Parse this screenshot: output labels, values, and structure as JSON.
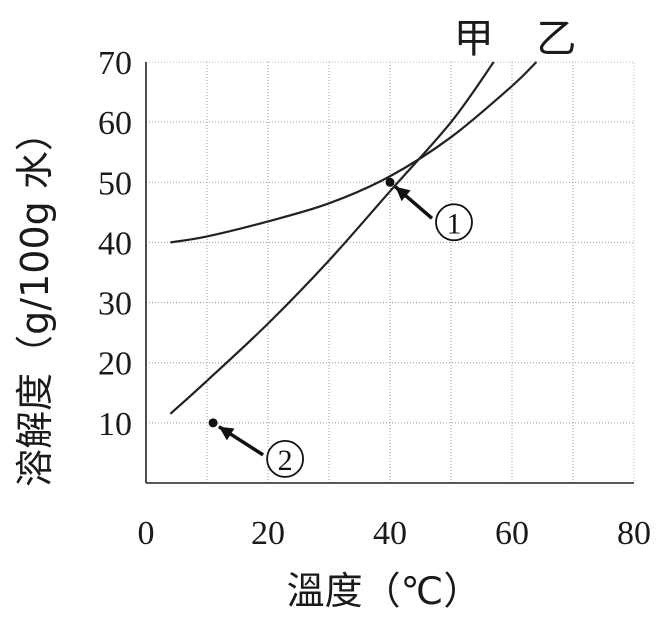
{
  "chart_data": {
    "type": "line",
    "title": "",
    "xlabel": "溫度（℃）",
    "ylabel": "溶解度（g/100g 水）",
    "xlim": [
      0,
      80
    ],
    "ylim": [
      0,
      70
    ],
    "x_ticks": [
      "0",
      "20",
      "40",
      "60",
      "80"
    ],
    "y_ticks": [
      "10",
      "20",
      "30",
      "40",
      "50",
      "60",
      "70"
    ],
    "grid": true,
    "series": [
      {
        "name": "甲",
        "x": [
          4,
          10,
          20,
          30,
          40,
          50,
          57
        ],
        "y": [
          11.5,
          17,
          26.5,
          37,
          48.5,
          60,
          70
        ]
      },
      {
        "name": "乙",
        "x": [
          4,
          10,
          20,
          30,
          40,
          50,
          60,
          64
        ],
        "y": [
          40,
          41,
          43.5,
          46.5,
          51,
          57.5,
          66,
          70
        ]
      }
    ],
    "points": [
      {
        "label": "①",
        "x": 40,
        "y": 50
      },
      {
        "label": "②",
        "x": 11,
        "y": 10
      }
    ],
    "colors": {
      "line": "#222222",
      "grid": "#9a9a9a"
    }
  }
}
